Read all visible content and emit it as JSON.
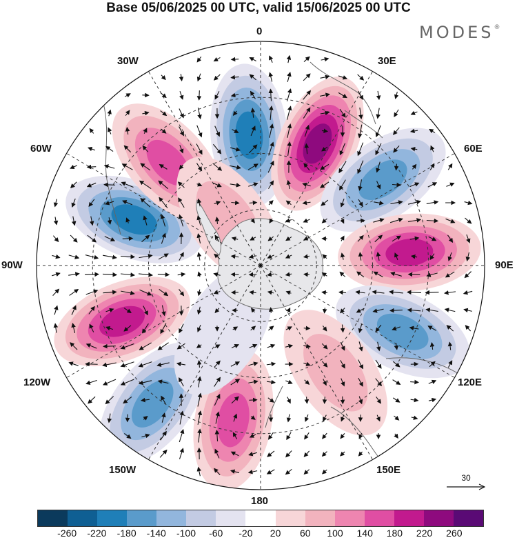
{
  "title": "Base 05/06/2025 00 UTC, valid 15/06/2025 00 UTC",
  "logo": {
    "text": "MODES",
    "mark": "®"
  },
  "longitude_labels": {
    "top": "0",
    "e30": "30E",
    "e60": "60E",
    "e90": "90E",
    "e120": "120E",
    "e150": "150E",
    "bottom": "180",
    "w150": "150W",
    "w120": "120W",
    "w90": "90W",
    "w60": "60W",
    "w30": "30W"
  },
  "vector_scale": {
    "label": "30"
  },
  "colorbar": {
    "colors": [
      "#0b3a5c",
      "#0f5f93",
      "#1f7fb8",
      "#5a9bcb",
      "#92b6dd",
      "#c3cbe3",
      "#e4e3f0",
      "#ffffff",
      "#f7d6d8",
      "#f2b3be",
      "#ee85b0",
      "#e04ea3",
      "#c21a8e",
      "#8e0a7e",
      "#5a0a75"
    ],
    "ticks": [
      "-260",
      "-220",
      "-180",
      "-140",
      "-100",
      "-60",
      "-20",
      "20",
      "60",
      "100",
      "140",
      "180",
      "220",
      "260"
    ]
  },
  "map_features": {
    "projection": "south-polar-stereographic",
    "field": "500 hPa geopotential height anomaly with wind vectors",
    "anomaly_centres": [
      {
        "lon": 355,
        "colat": 35,
        "value": -200
      },
      {
        "lon": 25,
        "colat": 36,
        "value": 250
      },
      {
        "lon": 55,
        "colat": 40,
        "value": -150
      },
      {
        "lon": 85,
        "colat": 40,
        "value": 190
      },
      {
        "lon": 115,
        "colat": 42,
        "value": -140
      },
      {
        "lon": 145,
        "colat": 35,
        "value": 60
      },
      {
        "lon": 190,
        "colat": 42,
        "value": 150
      },
      {
        "lon": 218,
        "colat": 47,
        "value": -170
      },
      {
        "lon": 248,
        "colat": 40,
        "value": 200
      },
      {
        "lon": 290,
        "colat": 36,
        "value": -200
      },
      {
        "lon": 318,
        "colat": 37,
        "value": 140
      },
      {
        "lon": 325,
        "colat": 15,
        "value": 90
      },
      {
        "lon": 210,
        "colat": 20,
        "value": -40
      }
    ]
  }
}
